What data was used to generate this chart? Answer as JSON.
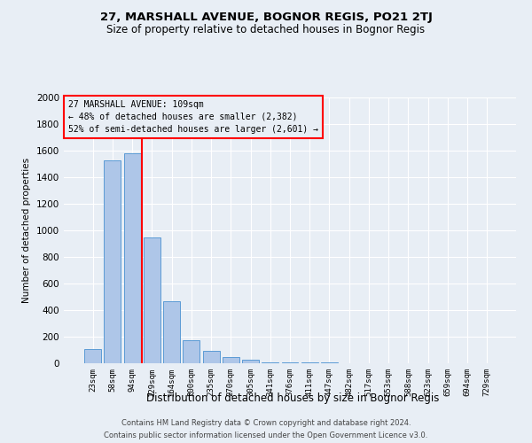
{
  "title": "27, MARSHALL AVENUE, BOGNOR REGIS, PO21 2TJ",
  "subtitle": "Size of property relative to detached houses in Bognor Regis",
  "xlabel": "Distribution of detached houses by size in Bognor Regis",
  "ylabel": "Number of detached properties",
  "bar_color": "#aec6e8",
  "bar_edge_color": "#5b9bd5",
  "annotation_title": "27 MARSHALL AVENUE: 109sqm",
  "annotation_line1": "← 48% of detached houses are smaller (2,382)",
  "annotation_line2": "52% of semi-detached houses are larger (2,601) →",
  "footer1": "Contains HM Land Registry data © Crown copyright and database right 2024.",
  "footer2": "Contains public sector information licensed under the Open Government Licence v3.0.",
  "categories": [
    "23sqm",
    "58sqm",
    "94sqm",
    "129sqm",
    "164sqm",
    "200sqm",
    "235sqm",
    "270sqm",
    "305sqm",
    "341sqm",
    "376sqm",
    "411sqm",
    "447sqm",
    "482sqm",
    "517sqm",
    "553sqm",
    "588sqm",
    "623sqm",
    "659sqm",
    "694sqm",
    "729sqm"
  ],
  "values": [
    105,
    1530,
    1580,
    950,
    470,
    175,
    95,
    50,
    25,
    10,
    5,
    5,
    5,
    0,
    0,
    0,
    0,
    0,
    0,
    0,
    0
  ],
  "red_line_index": 2.5,
  "ylim": [
    0,
    2000
  ],
  "yticks": [
    0,
    200,
    400,
    600,
    800,
    1000,
    1200,
    1400,
    1600,
    1800,
    2000
  ],
  "bg_color": "#e8eef5"
}
